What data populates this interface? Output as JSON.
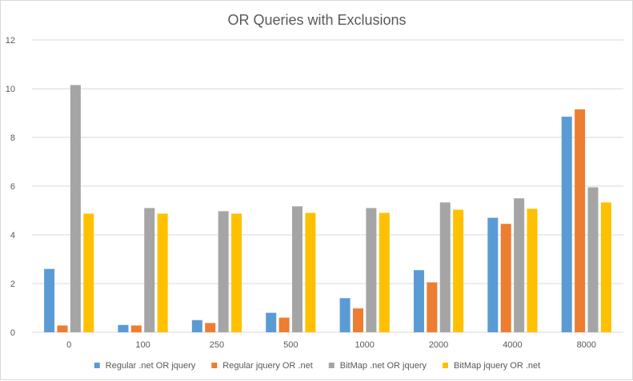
{
  "chart_data": {
    "type": "bar",
    "title": "OR Queries with Exclusions",
    "xlabel": "",
    "ylabel": "",
    "ylim": [
      0,
      12
    ],
    "yticks": [
      0,
      2,
      4,
      6,
      8,
      10,
      12
    ],
    "grid": true,
    "legend_position": "bottom",
    "categories": [
      "0",
      "100",
      "250",
      "500",
      "1000",
      "2000",
      "4000",
      "8000"
    ],
    "series": [
      {
        "name": "Regular .net OR jquery",
        "color": "#5b9bd5",
        "values": [
          2.6,
          0.3,
          0.5,
          0.8,
          1.4,
          2.55,
          4.7,
          8.85
        ]
      },
      {
        "name": "Regular jquery OR .net",
        "color": "#ed7d31",
        "values": [
          0.28,
          0.28,
          0.38,
          0.6,
          0.98,
          2.05,
          4.45,
          9.15
        ]
      },
      {
        "name": "BitMap .net OR jquery",
        "color": "#a5a5a5",
        "values": [
          10.15,
          5.1,
          4.97,
          5.17,
          5.1,
          5.33,
          5.5,
          5.95
        ]
      },
      {
        "name": "BitMap jquery OR .net",
        "color": "#ffc000",
        "values": [
          4.87,
          4.87,
          4.87,
          4.9,
          4.9,
          5.03,
          5.07,
          5.33
        ]
      }
    ]
  }
}
